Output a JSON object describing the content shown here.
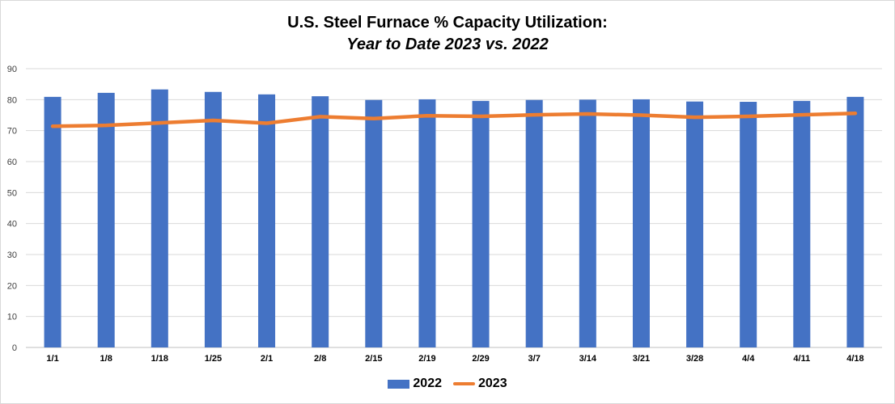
{
  "chart_data": {
    "type": "bar",
    "title": "U.S. Steel Furnace % Capacity Utilization:",
    "subtitle": "Year to Date 2023 vs. 2022",
    "categories": [
      "1/1",
      "1/8",
      "1/18",
      "1/25",
      "2/1",
      "2/8",
      "2/15",
      "2/19",
      "2/29",
      "3/7",
      "3/14",
      "3/21",
      "3/28",
      "4/4",
      "4/11",
      "4/18"
    ],
    "series": [
      {
        "name": "2022",
        "type": "bar",
        "color": "#4472c4",
        "values": [
          80.9,
          82.2,
          83.3,
          82.5,
          81.7,
          81.1,
          79.9,
          80.1,
          79.6,
          79.9,
          80.0,
          80.1,
          79.4,
          79.3,
          79.6,
          80.9
        ]
      },
      {
        "name": "2023",
        "type": "line",
        "color": "#ed7d31",
        "values": [
          71.4,
          71.7,
          72.5,
          73.3,
          72.4,
          74.5,
          73.9,
          74.8,
          74.6,
          75.1,
          75.4,
          75.0,
          74.3,
          74.6,
          75.1,
          75.6
        ]
      }
    ],
    "ylim": [
      0,
      90
    ],
    "yticks": [
      0,
      10,
      20,
      30,
      40,
      50,
      60,
      70,
      80,
      90
    ],
    "grid": true,
    "legend_position": "bottom"
  }
}
